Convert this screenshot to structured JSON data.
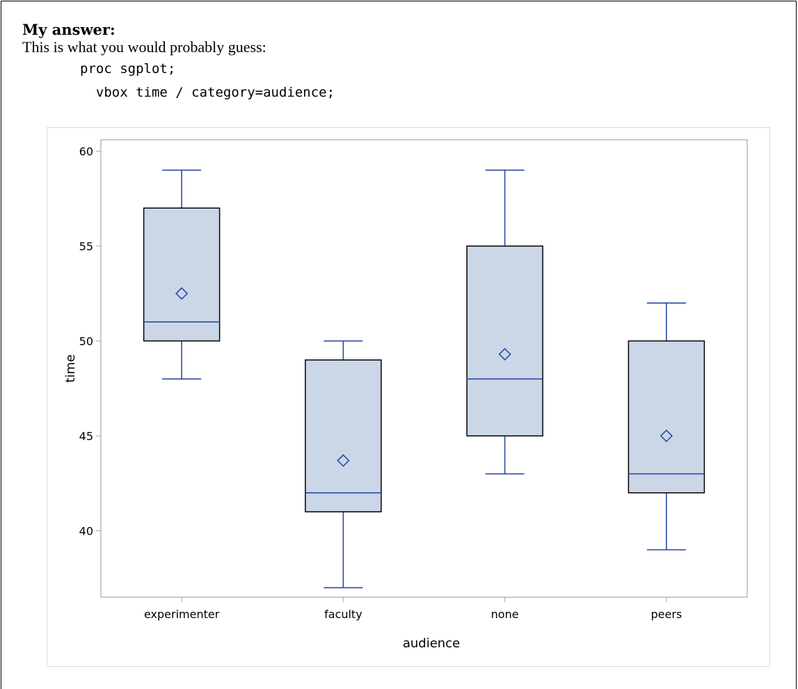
{
  "document": {
    "heading": "My answer:",
    "intro": "This is what you would probably guess:",
    "code_lines": [
      "proc sgplot;",
      "  vbox time / category=audience;"
    ]
  },
  "chart_data": {
    "type": "box",
    "title": "",
    "xlabel": "audience",
    "ylabel": "time",
    "ylim": [
      36.5,
      60.6
    ],
    "yticks": [
      40,
      45,
      50,
      55,
      60
    ],
    "categories": [
      "experimenter",
      "faculty",
      "none",
      "peers"
    ],
    "boxes": [
      {
        "category": "experimenter",
        "min": 48,
        "q1": 50,
        "median": 51,
        "q3": 57,
        "max": 59,
        "mean": 52.5
      },
      {
        "category": "faculty",
        "min": 37,
        "q1": 41,
        "median": 42,
        "q3": 49,
        "max": 50,
        "mean": 43.7
      },
      {
        "category": "none",
        "min": 43,
        "q1": 45,
        "median": 48,
        "q3": 55,
        "max": 59,
        "mean": 49.3
      },
      {
        "category": "peers",
        "min": 39,
        "q1": 42,
        "median": 43,
        "q3": 50,
        "max": 52,
        "mean": 45
      }
    ],
    "grid": false,
    "colors": {
      "box_fill": "#cbd6e7",
      "box_outline": "#000000",
      "whisker": "#2a4ba3",
      "median": "#2a4ba3",
      "mean_marker": "#2a4ba3",
      "axis": "#a6a6a6"
    }
  }
}
